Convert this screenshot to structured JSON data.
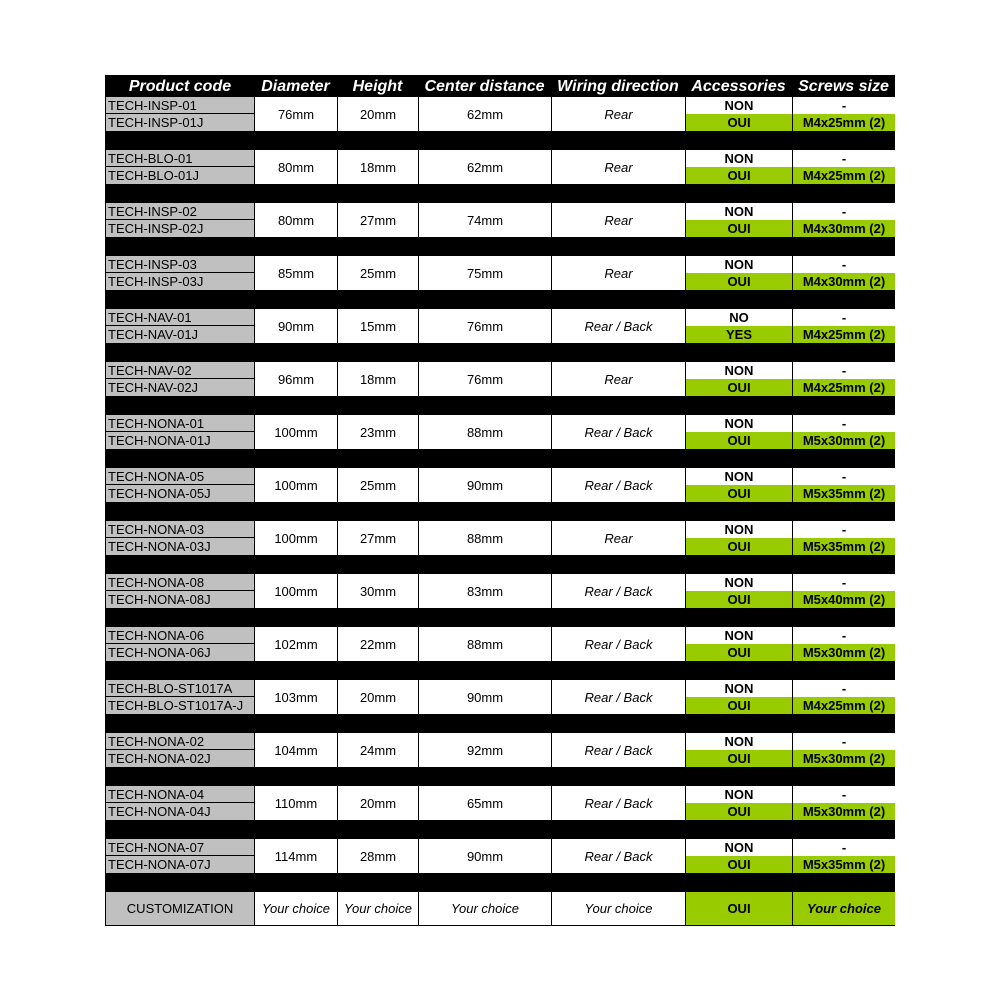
{
  "colors": {
    "header_bg": "#000000",
    "code_bg": "#c0c0c0",
    "accent_green": "#99cc00"
  },
  "headers": [
    "Product code",
    "Diameter",
    "Height",
    "Center distance",
    "Wiring direction",
    "Accessories",
    "Screws size"
  ],
  "groups": [
    {
      "codes": [
        "TECH-INSP-01",
        "TECH-INSP-01J"
      ],
      "diameter": "76mm",
      "height": "20mm",
      "center": "62mm",
      "wiring": "Rear",
      "acc": [
        "NON",
        "OUI"
      ],
      "screws": [
        "-",
        "M4x25mm (2)"
      ]
    },
    {
      "codes": [
        "TECH-BLO-01",
        "TECH-BLO-01J"
      ],
      "diameter": "80mm",
      "height": "18mm",
      "center": "62mm",
      "wiring": "Rear",
      "acc": [
        "NON",
        "OUI"
      ],
      "screws": [
        "-",
        "M4x25mm (2)"
      ]
    },
    {
      "codes": [
        "TECH-INSP-02",
        "TECH-INSP-02J"
      ],
      "diameter": "80mm",
      "height": "27mm",
      "center": "74mm",
      "wiring": "Rear",
      "acc": [
        "NON",
        "OUI"
      ],
      "screws": [
        "-",
        "M4x30mm (2)"
      ]
    },
    {
      "codes": [
        "TECH-INSP-03",
        "TECH-INSP-03J"
      ],
      "diameter": "85mm",
      "height": "25mm",
      "center": "75mm",
      "wiring": "Rear",
      "acc": [
        "NON",
        "OUI"
      ],
      "screws": [
        "-",
        "M4x30mm (2)"
      ]
    },
    {
      "codes": [
        "TECH-NAV-01",
        "TECH-NAV-01J"
      ],
      "diameter": "90mm",
      "height": "15mm",
      "center": "76mm",
      "wiring": "Rear / Back",
      "acc": [
        "NO",
        "YES"
      ],
      "screws": [
        "-",
        "M4x25mm (2)"
      ]
    },
    {
      "codes": [
        "TECH-NAV-02",
        "TECH-NAV-02J"
      ],
      "diameter": "96mm",
      "height": "18mm",
      "center": "76mm",
      "wiring": "Rear",
      "acc": [
        "NON",
        "OUI"
      ],
      "screws": [
        "-",
        "M4x25mm (2)"
      ]
    },
    {
      "codes": [
        "TECH-NONA-01",
        "TECH-NONA-01J"
      ],
      "diameter": "100mm",
      "height": "23mm",
      "center": "88mm",
      "wiring": "Rear / Back",
      "acc": [
        "NON",
        "OUI"
      ],
      "screws": [
        "-",
        "M5x30mm (2)"
      ]
    },
    {
      "codes": [
        "TECH-NONA-05",
        "TECH-NONA-05J"
      ],
      "diameter": "100mm",
      "height": "25mm",
      "center": "90mm",
      "wiring": "Rear / Back",
      "acc": [
        "NON",
        "OUI"
      ],
      "screws": [
        "-",
        "M5x35mm (2)"
      ]
    },
    {
      "codes": [
        "TECH-NONA-03",
        "TECH-NONA-03J"
      ],
      "diameter": "100mm",
      "height": "27mm",
      "center": "88mm",
      "wiring": "Rear",
      "acc": [
        "NON",
        "OUI"
      ],
      "screws": [
        "-",
        "M5x35mm (2)"
      ]
    },
    {
      "codes": [
        "TECH-NONA-08",
        "TECH-NONA-08J"
      ],
      "diameter": "100mm",
      "height": "30mm",
      "center": "83mm",
      "wiring": "Rear / Back",
      "acc": [
        "NON",
        "OUI"
      ],
      "screws": [
        "-",
        "M5x40mm (2)"
      ]
    },
    {
      "codes": [
        "TECH-NONA-06",
        "TECH-NONA-06J"
      ],
      "diameter": "102mm",
      "height": "22mm",
      "center": "88mm",
      "wiring": "Rear / Back",
      "acc": [
        "NON",
        "OUI"
      ],
      "screws": [
        "-",
        "M5x30mm (2)"
      ]
    },
    {
      "codes": [
        "TECH-BLO-ST1017A",
        "TECH-BLO-ST1017A-J"
      ],
      "diameter": "103mm",
      "height": "20mm",
      "center": "90mm",
      "wiring": "Rear / Back",
      "acc": [
        "NON",
        "OUI"
      ],
      "screws": [
        "-",
        "M4x25mm (2)"
      ]
    },
    {
      "codes": [
        "TECH-NONA-02",
        "TECH-NONA-02J"
      ],
      "diameter": "104mm",
      "height": "24mm",
      "center": "92mm",
      "wiring": "Rear / Back",
      "acc": [
        "NON",
        "OUI"
      ],
      "screws": [
        "-",
        "M5x30mm (2)"
      ]
    },
    {
      "codes": [
        "TECH-NONA-04",
        "TECH-NONA-04J"
      ],
      "diameter": "110mm",
      "height": "20mm",
      "center": "65mm",
      "wiring": "Rear / Back",
      "acc": [
        "NON",
        "OUI"
      ],
      "screws": [
        "-",
        "M5x30mm (2)"
      ]
    },
    {
      "codes": [
        "TECH-NONA-07",
        "TECH-NONA-07J"
      ],
      "diameter": "114mm",
      "height": "28mm",
      "center": "90mm",
      "wiring": "Rear / Back",
      "acc": [
        "NON",
        "OUI"
      ],
      "screws": [
        "-",
        "M5x35mm (2)"
      ]
    }
  ],
  "customization": {
    "code": "CUSTOMIZATION",
    "diameter": "Your choice",
    "height": "Your choice",
    "center": "Your choice",
    "wiring": "Your choice",
    "acc": "OUI",
    "screws": "Your choice"
  }
}
